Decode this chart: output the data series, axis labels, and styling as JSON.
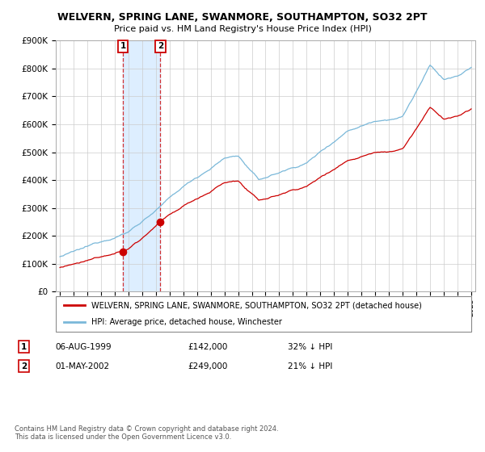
{
  "title": "WELVERN, SPRING LANE, SWANMORE, SOUTHAMPTON, SO32 2PT",
  "subtitle": "Price paid vs. HM Land Registry's House Price Index (HPI)",
  "ylim": [
    0,
    900000
  ],
  "yticks": [
    0,
    100000,
    200000,
    300000,
    400000,
    500000,
    600000,
    700000,
    800000,
    900000
  ],
  "ytick_labels": [
    "£0",
    "£100K",
    "£200K",
    "£300K",
    "£400K",
    "£500K",
    "£600K",
    "£700K",
    "£800K",
    "£900K"
  ],
  "hpi_color": "#7ab8d9",
  "price_color": "#cc0000",
  "sale1_year": 1999.59,
  "sale1_price": 142000,
  "sale1_label": "1",
  "sale2_year": 2002.33,
  "sale2_price": 249000,
  "sale2_label": "2",
  "legend_property": "WELVERN, SPRING LANE, SWANMORE, SOUTHAMPTON, SO32 2PT (detached house)",
  "legend_hpi": "HPI: Average price, detached house, Winchester",
  "fn1_date": "06-AUG-1999",
  "fn1_price": "£142,000",
  "fn1_pct": "32% ↓ HPI",
  "fn2_date": "01-MAY-2002",
  "fn2_price": "£249,000",
  "fn2_pct": "21% ↓ HPI",
  "copyright": "Contains HM Land Registry data © Crown copyright and database right 2024.\nThis data is licensed under the Open Government Licence v3.0.",
  "box_color": "#cc0000",
  "shade_color": "#ddeeff"
}
